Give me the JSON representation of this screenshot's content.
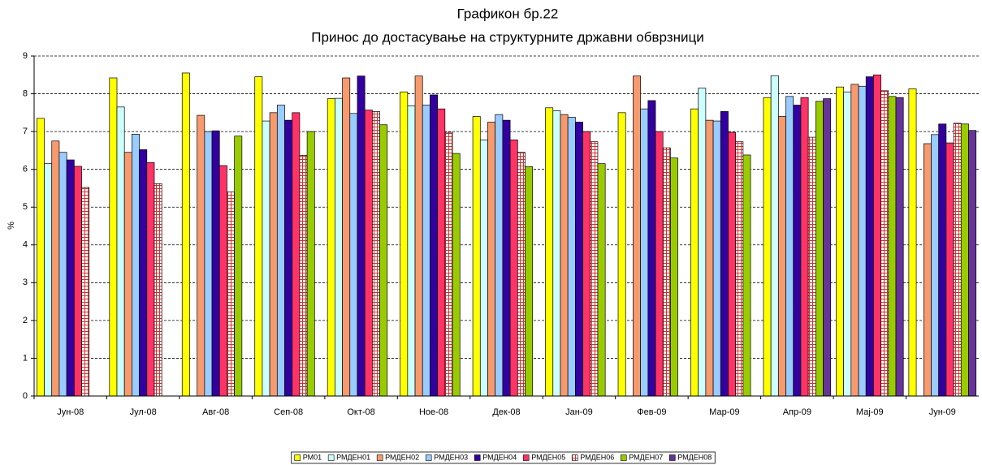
{
  "chart_data": {
    "type": "bar",
    "title": "Графикон бр.22",
    "subtitle": "Принос до достасување на структурните државни обврзници",
    "y_label": "%",
    "categories": [
      "Јун-08",
      "Јул-08",
      "Авг-08",
      "Сеп-08",
      "Окт-08",
      "Ное-08",
      "Дек-08",
      "Јан-09",
      "Фев-09",
      "Мар-09",
      "Апр-09",
      "Мај-09",
      "Јун-09"
    ],
    "series": [
      {
        "name": "РМ01",
        "color": "#ffff00",
        "values": [
          7.35,
          8.42,
          8.55,
          8.45,
          7.87,
          8.05,
          7.4,
          7.63,
          7.5,
          7.6,
          7.9,
          8.18,
          8.13
        ]
      },
      {
        "name": "РМДЕН01",
        "color": "#ccffff",
        "values": [
          6.15,
          7.65,
          null,
          7.28,
          7.88,
          7.68,
          6.78,
          7.55,
          null,
          8.15,
          8.48,
          8.05,
          null
        ]
      },
      {
        "name": "РМДЕН02",
        "color": "#f79a6e",
        "values": [
          6.75,
          6.45,
          7.43,
          7.5,
          8.42,
          8.47,
          7.25,
          7.45,
          8.47,
          7.3,
          7.4,
          8.25,
          6.68
        ]
      },
      {
        "name": "РМДЕН03",
        "color": "#99ccff",
        "values": [
          6.45,
          6.93,
          7.0,
          7.7,
          7.48,
          7.7,
          7.45,
          7.38,
          7.6,
          7.28,
          7.93,
          8.2,
          6.92
        ]
      },
      {
        "name": "РМДЕН04",
        "color": "#3300a0",
        "values": [
          6.25,
          6.52,
          7.02,
          7.3,
          8.47,
          7.97,
          7.3,
          7.25,
          7.82,
          7.53,
          7.7,
          8.45,
          7.2
        ]
      },
      {
        "name": "РМДЕН05",
        "color": "#ff3366",
        "values": [
          6.08,
          6.18,
          6.1,
          7.5,
          7.57,
          7.6,
          6.78,
          7.0,
          7.0,
          6.98,
          7.9,
          8.5,
          6.7
        ]
      },
      {
        "name": "РМДЕН06",
        "color": "#cc3333",
        "pattern": "grid",
        "values": [
          5.52,
          5.62,
          5.4,
          6.37,
          7.53,
          6.98,
          6.45,
          6.73,
          6.57,
          6.73,
          6.85,
          8.08,
          7.22
        ]
      },
      {
        "name": "РМДЕН07",
        "color": "#99cc00",
        "values": [
          null,
          null,
          6.88,
          7.0,
          7.18,
          6.42,
          6.07,
          6.15,
          6.3,
          6.38,
          7.8,
          7.93,
          7.2
        ]
      },
      {
        "name": "РМДЕН08",
        "color": "#663399",
        "values": [
          null,
          null,
          null,
          null,
          null,
          null,
          null,
          null,
          null,
          null,
          7.87,
          7.9,
          7.03
        ]
      }
    ],
    "ylim": [
      0,
      9
    ],
    "yticks": [
      0,
      1,
      2,
      3,
      4,
      5,
      6,
      7,
      8,
      9
    ],
    "grid": true,
    "legend": "bottom"
  }
}
